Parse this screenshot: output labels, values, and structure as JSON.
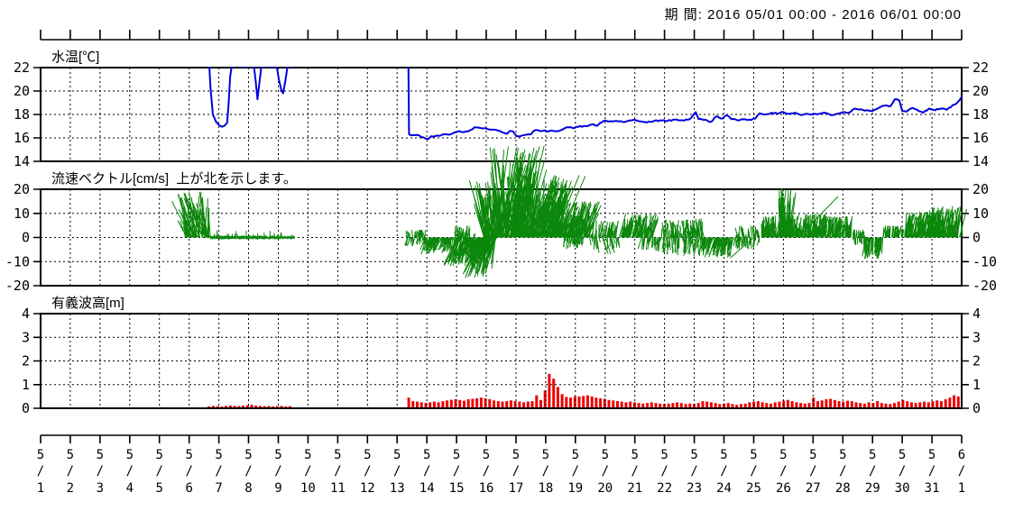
{
  "header": {
    "period_label": "期 間: 2016 05/01 00:00 - 2016 06/01 00:00"
  },
  "x_axis": {
    "tick_labels": [
      "5/1",
      "5/2",
      "5/3",
      "5/4",
      "5/5",
      "5/6",
      "5/7",
      "5/8",
      "5/9",
      "5/10",
      "5/11",
      "5/12",
      "5/13",
      "5/14",
      "5/15",
      "5/16",
      "5/17",
      "5/18",
      "5/19",
      "5/20",
      "5/21",
      "5/22",
      "5/23",
      "5/24",
      "5/25",
      "5/26",
      "5/27",
      "5/28",
      "5/29",
      "5/30",
      "5/31",
      "6/1"
    ],
    "start": "2016 05/01 00:00",
    "end": "2016 06/01 00:00",
    "grid": "dashed-daily"
  },
  "chart_data": [
    {
      "id": "water-temp",
      "type": "line",
      "title": "水温[℃]",
      "ylabel": "水温[℃]",
      "ylim": [
        14,
        22
      ],
      "yticks": [
        22,
        20,
        18,
        16,
        14
      ],
      "color": "#0000dd",
      "jitter": 0.06,
      "series": [
        {
          "name": "temp-early",
          "points": [
            [
              5.67,
              22.6
            ],
            [
              5.72,
              20.2
            ],
            [
              5.8,
              18.0
            ],
            [
              5.9,
              17.4
            ],
            [
              6.0,
              17.1
            ],
            [
              6.1,
              16.95
            ],
            [
              6.2,
              17.05
            ],
            [
              6.28,
              17.3
            ],
            [
              6.33,
              19.0
            ],
            [
              6.38,
              21.2
            ],
            [
              6.43,
              22.1
            ],
            [
              7.18,
              22.1
            ],
            [
              7.24,
              20.8
            ],
            [
              7.3,
              19.3
            ],
            [
              7.36,
              20.6
            ],
            [
              7.43,
              22.1
            ],
            [
              7.95,
              22.1
            ],
            [
              8.02,
              21.0
            ],
            [
              8.1,
              20.1
            ],
            [
              8.16,
              19.8
            ],
            [
              8.24,
              20.9
            ],
            [
              8.31,
              22.1
            ],
            [
              8.5,
              22.1
            ]
          ]
        },
        {
          "name": "temp-main",
          "points": [
            [
              12.38,
              22.6
            ],
            [
              12.4,
              16.3
            ],
            [
              12.55,
              16.25
            ],
            [
              12.75,
              16.2
            ],
            [
              12.95,
              15.95
            ],
            [
              13.05,
              15.9
            ],
            [
              13.15,
              16.15
            ],
            [
              13.35,
              16.2
            ],
            [
              13.6,
              16.3
            ],
            [
              13.85,
              16.35
            ],
            [
              14.05,
              16.55
            ],
            [
              14.25,
              16.5
            ],
            [
              14.45,
              16.65
            ],
            [
              14.6,
              16.9
            ],
            [
              14.8,
              16.85
            ],
            [
              15.0,
              16.8
            ],
            [
              15.2,
              16.7
            ],
            [
              15.45,
              16.6
            ],
            [
              15.7,
              16.35
            ],
            [
              15.8,
              16.6
            ],
            [
              15.9,
              16.55
            ],
            [
              16.0,
              16.2
            ],
            [
              16.15,
              16.15
            ],
            [
              16.3,
              16.25
            ],
            [
              16.5,
              16.3
            ],
            [
              16.6,
              16.6
            ],
            [
              16.75,
              16.65
            ],
            [
              16.9,
              16.6
            ],
            [
              17.1,
              16.55
            ],
            [
              17.25,
              16.6
            ],
            [
              17.5,
              16.65
            ],
            [
              17.7,
              16.9
            ],
            [
              17.9,
              16.85
            ],
            [
              18.1,
              16.95
            ],
            [
              18.35,
              17.0
            ],
            [
              18.55,
              17.15
            ],
            [
              18.75,
              17.05
            ],
            [
              18.95,
              17.45
            ],
            [
              19.15,
              17.4
            ],
            [
              19.4,
              17.45
            ],
            [
              19.65,
              17.35
            ],
            [
              19.9,
              17.5
            ],
            [
              20.1,
              17.45
            ],
            [
              20.35,
              17.35
            ],
            [
              20.6,
              17.4
            ],
            [
              20.85,
              17.5
            ],
            [
              21.1,
              17.45
            ],
            [
              21.35,
              17.55
            ],
            [
              21.6,
              17.5
            ],
            [
              21.85,
              17.6
            ],
            [
              22.05,
              18.2
            ],
            [
              22.15,
              17.6
            ],
            [
              22.35,
              17.55
            ],
            [
              22.55,
              17.35
            ],
            [
              22.75,
              17.85
            ],
            [
              22.95,
              17.65
            ],
            [
              23.1,
              17.95
            ],
            [
              23.25,
              17.6
            ],
            [
              23.45,
              17.5
            ],
            [
              23.65,
              17.6
            ],
            [
              23.85,
              17.55
            ],
            [
              24.05,
              17.65
            ],
            [
              24.2,
              18.1
            ],
            [
              24.4,
              18.0
            ],
            [
              24.6,
              18.15
            ],
            [
              24.8,
              18.05
            ],
            [
              25.0,
              18.2
            ],
            [
              25.2,
              18.05
            ],
            [
              25.4,
              18.15
            ],
            [
              25.6,
              17.95
            ],
            [
              25.8,
              18.05
            ],
            [
              26.0,
              18.0
            ],
            [
              26.2,
              18.05
            ],
            [
              26.4,
              18.15
            ],
            [
              26.6,
              17.95
            ],
            [
              26.8,
              18.05
            ],
            [
              27.0,
              18.2
            ],
            [
              27.2,
              18.15
            ],
            [
              27.4,
              18.5
            ],
            [
              27.6,
              18.45
            ],
            [
              27.8,
              18.35
            ],
            [
              28.0,
              18.3
            ],
            [
              28.2,
              18.55
            ],
            [
              28.4,
              18.75
            ],
            [
              28.6,
              18.7
            ],
            [
              28.75,
              19.3
            ],
            [
              28.9,
              19.2
            ],
            [
              29.0,
              18.3
            ],
            [
              29.15,
              18.25
            ],
            [
              29.35,
              18.55
            ],
            [
              29.5,
              18.4
            ],
            [
              29.7,
              18.15
            ],
            [
              29.9,
              18.5
            ],
            [
              30.1,
              18.35
            ],
            [
              30.3,
              18.5
            ],
            [
              30.5,
              18.4
            ],
            [
              30.7,
              18.8
            ],
            [
              30.85,
              19.0
            ],
            [
              30.95,
              19.3
            ],
            [
              31.0,
              19.5
            ]
          ]
        }
      ]
    },
    {
      "id": "current-vector",
      "type": "vector-stick",
      "title": "流速ベクトル[cm/s]  上が北を示します。",
      "ylabel": "流速ベクトル[cm/s]",
      "note": "上が北を示します。",
      "ylim": [
        -20,
        20
      ],
      "yticks": [
        20,
        10,
        0,
        -10,
        -20
      ],
      "color": "#0b870b",
      "segments": [
        {
          "d0": 4.85,
          "d1": 5.72,
          "n": 70,
          "min": 2,
          "max": 19,
          "mode": "up",
          "lean": -6,
          "spread": 18
        },
        {
          "d0": 5.72,
          "d1": 8.5,
          "n": 260,
          "min": 0.2,
          "max": 1.6,
          "mode": "calm"
        },
        {
          "d0": 12.3,
          "d1": 12.95,
          "n": 55,
          "min": 0.3,
          "max": 3.5,
          "mode": "mixed",
          "bias": 0.4,
          "lean": -6,
          "spread": 14
        },
        {
          "d0": 12.95,
          "d1": 13.9,
          "n": 85,
          "min": 0.5,
          "max": 7,
          "mode": "down",
          "lean": -10,
          "spread": 16
        },
        {
          "d0": 13.9,
          "d1": 14.75,
          "n": 80,
          "min": 1,
          "max": 12,
          "mode": "down",
          "lean": -8,
          "spread": 14
        },
        {
          "d0": 13.9,
          "d1": 14.6,
          "n": 30,
          "min": 1,
          "max": 5,
          "mode": "up",
          "lean": 2,
          "spread": 10
        },
        {
          "d0": 14.75,
          "d1": 15.35,
          "n": 90,
          "min": 3,
          "max": 17,
          "mode": "down",
          "lean": -9,
          "spread": 12
        },
        {
          "d0": 14.9,
          "d1": 15.45,
          "n": 60,
          "min": 4,
          "max": 24,
          "mode": "up",
          "lean": -3,
          "spread": 10
        },
        {
          "d0": 15.35,
          "d1": 16.45,
          "n": 150,
          "min": 6,
          "max": 38,
          "mode": "up",
          "lean": 2,
          "spread": 12
        },
        {
          "d0": 16.45,
          "d1": 17.45,
          "n": 130,
          "min": 4,
          "max": 26,
          "mode": "up",
          "lean": 7,
          "spread": 12
        },
        {
          "d0": 17.45,
          "d1": 18.45,
          "n": 100,
          "min": 2,
          "max": 15,
          "mode": "up",
          "lean": 9,
          "spread": 10
        },
        {
          "d0": 17.6,
          "d1": 18.3,
          "n": 30,
          "min": 1,
          "max": 5,
          "mode": "down",
          "lean": -4,
          "spread": 8
        },
        {
          "d0": 18.45,
          "d1": 19.45,
          "n": 80,
          "min": 0.5,
          "max": 7,
          "mode": "mixed",
          "bias": 0.65,
          "lean": 4,
          "spread": 10
        },
        {
          "d0": 19.45,
          "d1": 20.6,
          "n": 95,
          "min": 1.5,
          "max": 10,
          "mode": "up",
          "lean": 5,
          "spread": 10
        },
        {
          "d0": 20.2,
          "d1": 20.9,
          "n": 30,
          "min": 1,
          "max": 6,
          "mode": "down",
          "lean": -5,
          "spread": 8
        },
        {
          "d0": 20.9,
          "d1": 21.7,
          "n": 70,
          "min": 1,
          "max": 7.5,
          "mode": "mixed",
          "bias": 0.6,
          "lean": 0,
          "spread": 10
        },
        {
          "d0": 21.7,
          "d1": 22.35,
          "n": 65,
          "min": 1.5,
          "max": 8,
          "mode": "mixed",
          "bias": 0.5,
          "lean": -3,
          "spread": 10
        },
        {
          "d0": 22.35,
          "d1": 23.35,
          "n": 85,
          "min": 1,
          "max": 8.5,
          "mode": "down",
          "lean": -7,
          "spread": 12
        },
        {
          "d0": 23.35,
          "d1": 24.25,
          "n": 65,
          "min": 0.4,
          "max": 5,
          "mode": "mixed",
          "bias": 0.45,
          "lean": -3,
          "spread": 8
        },
        {
          "d0": 24.25,
          "d1": 24.85,
          "n": 55,
          "min": 1.5,
          "max": 9,
          "mode": "up",
          "lean": 2,
          "spread": 8
        },
        {
          "d0": 24.85,
          "d1": 25.25,
          "n": 45,
          "min": 4,
          "max": 21,
          "mode": "up",
          "lean": 1,
          "spread": 6
        },
        {
          "d0": 25.25,
          "d1": 26.35,
          "n": 90,
          "min": 2,
          "max": 10,
          "mode": "up",
          "lean": 4,
          "spread": 8
        },
        {
          "d0": 26.35,
          "d1": 27.35,
          "n": 90,
          "min": 1.5,
          "max": 9,
          "mode": "up",
          "lean": 2,
          "spread": 8
        },
        {
          "d0": 27.35,
          "d1": 27.75,
          "n": 35,
          "min": 0.3,
          "max": 3.5,
          "mode": "mixed",
          "bias": 0.5,
          "lean": 0,
          "spread": 6
        },
        {
          "d0": 27.75,
          "d1": 28.35,
          "n": 50,
          "min": 1.5,
          "max": 9,
          "mode": "down",
          "lean": -2,
          "spread": 8
        },
        {
          "d0": 28.35,
          "d1": 29.05,
          "n": 55,
          "min": 0.8,
          "max": 5,
          "mode": "up",
          "lean": 2,
          "spread": 8
        },
        {
          "d0": 29.05,
          "d1": 29.85,
          "n": 75,
          "min": 2,
          "max": 11,
          "mode": "up",
          "lean": 6,
          "spread": 10
        },
        {
          "d0": 29.85,
          "d1": 31.0,
          "n": 130,
          "min": 2,
          "max": 13,
          "mode": "up",
          "lean": 3,
          "spread": 8
        }
      ],
      "extra_vectors": [
        {
          "d": 25.5,
          "v": 17,
          "lean": 44
        },
        {
          "d": 24.0,
          "v": -8.5,
          "lean": -26
        },
        {
          "d": 16.9,
          "v": 14,
          "lean": 30
        },
        {
          "d": 5.0,
          "v": 18,
          "lean": -12
        }
      ]
    },
    {
      "id": "wave-height",
      "type": "bar",
      "title": "有義波高[m]",
      "ylabel": "有義波高[m]",
      "ylim": [
        0,
        4
      ],
      "yticks": [
        4,
        3,
        2,
        1,
        0
      ],
      "color": "#ee0000",
      "series": [
        {
          "name": "wave-early",
          "start_day": 5.67,
          "step": 0.1434,
          "values": [
            0.08,
            0.1,
            0.09,
            0.08,
            0.1,
            0.12,
            0.1,
            0.09,
            0.11,
            0.13,
            0.15,
            0.12,
            0.1,
            0.09,
            0.1,
            0.08,
            0.09,
            0.1,
            0.08,
            0.09
          ]
        },
        {
          "name": "wave-main",
          "start_day": 12.39,
          "step": 0.1434,
          "values": [
            0.45,
            0.3,
            0.28,
            0.25,
            0.22,
            0.25,
            0.28,
            0.25,
            0.3,
            0.33,
            0.36,
            0.38,
            0.35,
            0.32,
            0.38,
            0.4,
            0.42,
            0.45,
            0.42,
            0.38,
            0.33,
            0.3,
            0.28,
            0.3,
            0.33,
            0.3,
            0.28,
            0.25,
            0.28,
            0.3,
            0.55,
            0.35,
            0.75,
            1.45,
            1.25,
            0.9,
            0.6,
            0.48,
            0.45,
            0.5,
            0.5,
            0.52,
            0.55,
            0.5,
            0.45,
            0.42,
            0.4,
            0.35,
            0.33,
            0.3,
            0.28,
            0.25,
            0.28,
            0.25,
            0.22,
            0.2,
            0.22,
            0.25,
            0.22,
            0.2,
            0.18,
            0.2,
            0.22,
            0.25,
            0.22,
            0.18,
            0.2,
            0.18,
            0.22,
            0.3,
            0.28,
            0.25,
            0.22,
            0.18,
            0.2,
            0.22,
            0.18,
            0.15,
            0.18,
            0.2,
            0.25,
            0.28,
            0.3,
            0.25,
            0.22,
            0.2,
            0.25,
            0.28,
            0.32,
            0.35,
            0.3,
            0.25,
            0.22,
            0.2,
            0.22,
            0.45,
            0.3,
            0.33,
            0.38,
            0.4,
            0.35,
            0.3,
            0.28,
            0.32,
            0.3,
            0.25,
            0.22,
            0.2,
            0.25,
            0.22,
            0.3,
            0.22,
            0.2,
            0.18,
            0.22,
            0.28,
            0.35,
            0.3,
            0.25,
            0.22,
            0.25,
            0.28,
            0.25,
            0.3,
            0.33,
            0.3,
            0.38,
            0.45,
            0.55,
            0.5
          ]
        }
      ]
    }
  ]
}
